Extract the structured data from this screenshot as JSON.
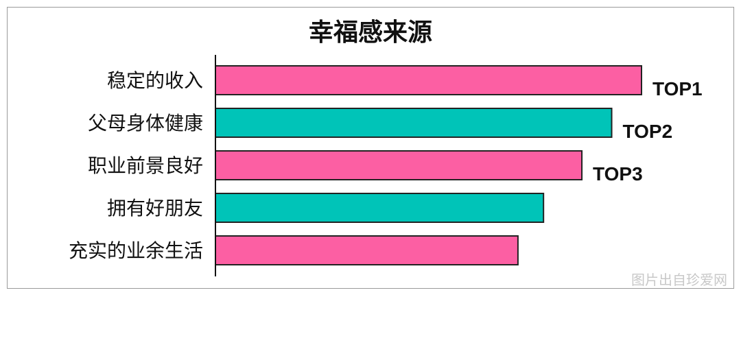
{
  "chart_data": {
    "type": "bar",
    "orientation": "horizontal",
    "title": "幸福感来源",
    "categories": [
      "稳定的收入",
      "父母身体健康",
      "职业前景良好",
      "拥有好朋友",
      "充实的业余生活"
    ],
    "values": [
      100,
      93,
      86,
      77,
      71
    ],
    "colors": [
      "#fc5fa3",
      "#00c4b8",
      "#fc5fa3",
      "#00c4b8",
      "#fc5fa3"
    ],
    "data_labels": [
      "TOP1",
      "TOP2",
      "TOP3",
      "",
      ""
    ],
    "xlim": [
      0,
      100
    ],
    "grid": false,
    "legend": "none"
  },
  "watermark": "图片出自珍爱网"
}
